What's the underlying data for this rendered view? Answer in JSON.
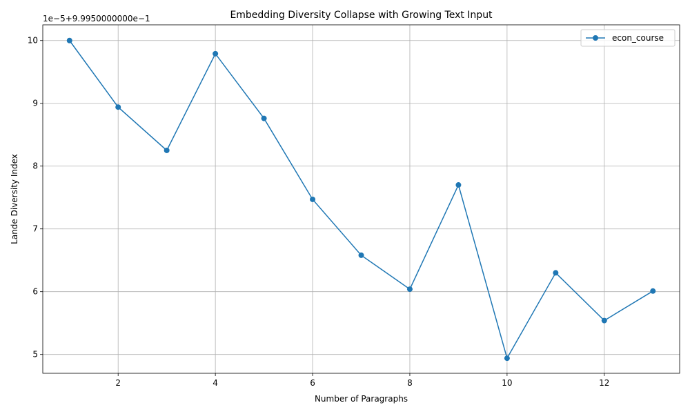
{
  "chart_data": {
    "type": "line",
    "title": "Embedding Diversity Collapse with Growing Text Input",
    "xlabel": "Number of Paragraphs",
    "ylabel": "Lande Diversity Index",
    "offset_text": "1e−5+9.9950000000e−1",
    "xlim": [
      0.45,
      13.55
    ],
    "ylim": [
      4.7,
      10.25
    ],
    "xticks": [
      2,
      4,
      6,
      8,
      10,
      12
    ],
    "yticks": [
      5,
      6,
      7,
      8,
      9,
      10
    ],
    "grid": true,
    "legend_position": "top-right",
    "series": [
      {
        "name": "econ_course",
        "color": "#1f77b4",
        "marker": "circle",
        "x": [
          1,
          2,
          3,
          4,
          5,
          6,
          7,
          8,
          9,
          10,
          11,
          12,
          13
        ],
        "y": [
          10.0,
          8.94,
          8.25,
          9.79,
          8.76,
          7.47,
          6.58,
          6.04,
          7.7,
          4.94,
          6.3,
          5.54,
          6.01
        ]
      }
    ]
  }
}
